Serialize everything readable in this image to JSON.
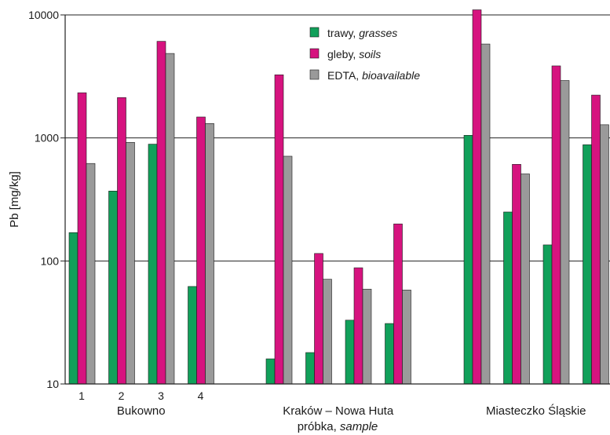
{
  "chart_data": {
    "type": "bar",
    "y_scale": "log",
    "ylim": [
      10,
      10000
    ],
    "yticks": [
      "10",
      "100",
      "1000",
      "10000"
    ],
    "ylabel": "Pb [mg/kg]",
    "xlabel": {
      "plain": "próbka, ",
      "italic": "sample"
    },
    "grid": "horizontal at decades",
    "legend_position": "top-center",
    "groups": [
      {
        "name": "Bukowno",
        "sample_labels": [
          "1",
          "2",
          "3",
          "4"
        ],
        "n": 4
      },
      {
        "name": "Kraków – Nowa Huta",
        "sample_labels": [
          "",
          "",
          "",
          ""
        ],
        "n": 4
      },
      {
        "name": "Miasteczko Śląskie",
        "sample_labels": [
          "",
          "",
          "",
          ""
        ],
        "n": 4
      }
    ],
    "series": [
      {
        "name_plain": "trawy, ",
        "name_italic": "grasses",
        "color": "#11a05a",
        "values": [
          170,
          370,
          890,
          62,
          16,
          18,
          33,
          31,
          1050,
          250,
          135,
          880
        ]
      },
      {
        "name_plain": "gleby, ",
        "name_italic": "soils",
        "color": "#d6137f",
        "values": [
          2330,
          2130,
          6100,
          1480,
          3260,
          115,
          88,
          200,
          11000,
          610,
          3850,
          2230
        ]
      },
      {
        "name_plain": "EDTA, ",
        "name_italic": "bioavailable",
        "color": "#9a9a9a",
        "values": [
          620,
          920,
          4860,
          1310,
          710,
          71,
          59,
          58,
          5800,
          510,
          2930,
          1280
        ]
      }
    ]
  }
}
